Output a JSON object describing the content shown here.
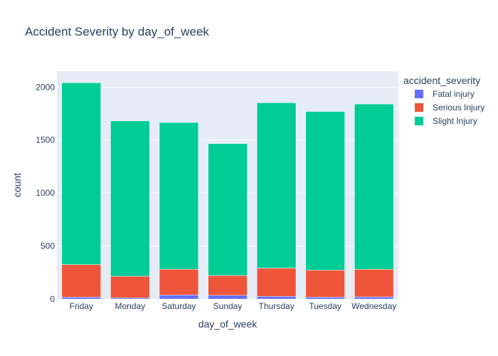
{
  "chart_data": {
    "type": "bar",
    "stacked": true,
    "title": "Accident Severity by day_of_week",
    "xlabel": "day_of_week",
    "ylabel": "count",
    "ylim": [
      0,
      2150
    ],
    "yticks": [
      0,
      500,
      1000,
      1500,
      2000
    ],
    "grid": true,
    "legend_title": "accident_severity",
    "legend_position": "right",
    "categories": [
      "Friday",
      "Monday",
      "Saturday",
      "Sunday",
      "Thursday",
      "Tuesday",
      "Wednesday"
    ],
    "series": [
      {
        "name": "Fatal injury",
        "color": "#636efa",
        "values": [
          18,
          12,
          38,
          35,
          25,
          18,
          20
        ]
      },
      {
        "name": "Serious Injury",
        "color": "#ef553b",
        "values": [
          307,
          203,
          243,
          187,
          267,
          255,
          260
        ]
      },
      {
        "name": "Slight Injury",
        "color": "#00cc96",
        "values": [
          1716,
          1466,
          1385,
          1245,
          1560,
          1497,
          1560
        ]
      }
    ]
  }
}
